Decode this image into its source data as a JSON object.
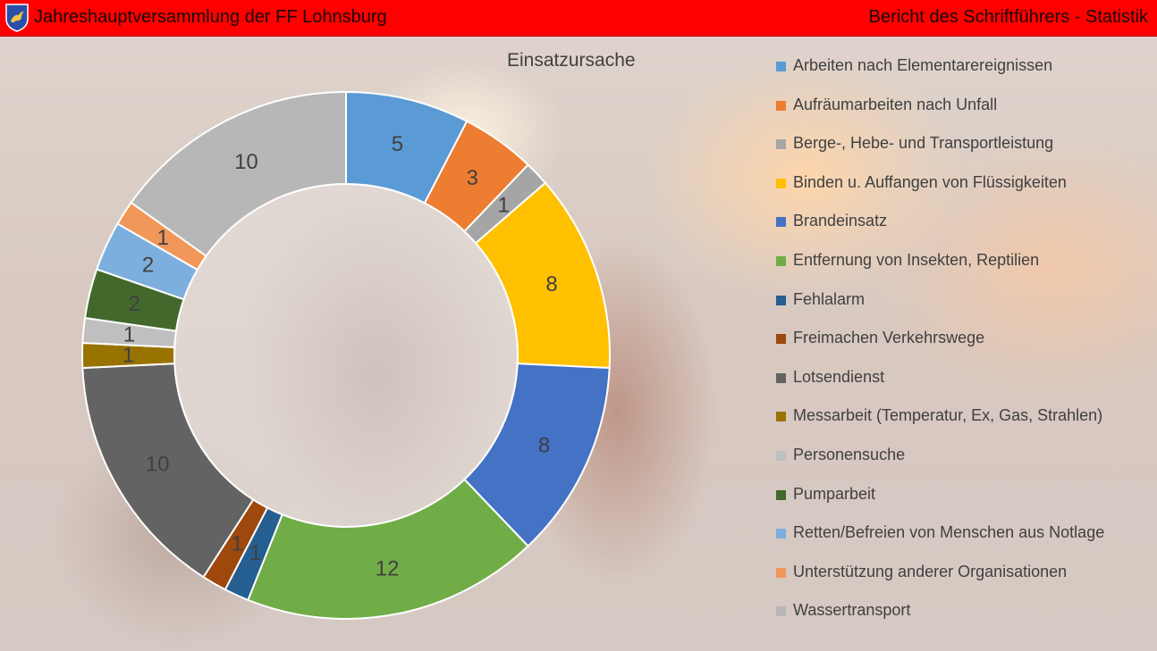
{
  "header": {
    "left_title": "Jahreshauptversammlung der FF Lohnsburg",
    "right_title": "Bericht des Schriftführers - Statistik",
    "bar_color": "#ff0000"
  },
  "chart_data": {
    "type": "pie",
    "style": "donut",
    "title": "Einsatzursache",
    "legend_position": "right",
    "start_angle": "top",
    "direction": "clockwise",
    "categories": [
      "Arbeiten nach Elementarereignissen",
      "Aufräumarbeiten nach Unfall",
      "Berge-, Hebe- und Transportleistung",
      "Binden u. Auffangen von Flüssigkeiten",
      "Brandeinsatz",
      "Entfernung von Insekten, Reptilien",
      "Fehlalarm",
      "Freimachen Verkehrswege",
      "Lotsendienst",
      "Messarbeit (Temperatur, Ex, Gas, Strahlen)",
      "Personensuche",
      "Pumparbeit",
      "Retten/Befreien von Menschen aus Notlage",
      "Unterstützung anderer Organisationen",
      "Wassertransport"
    ],
    "values": [
      5,
      3,
      1,
      8,
      8,
      12,
      1,
      1,
      10,
      1,
      1,
      2,
      2,
      1,
      10
    ],
    "colors": [
      "#5b9bd5",
      "#ed7d31",
      "#a5a5a5",
      "#ffc000",
      "#4472c4",
      "#70ad47",
      "#255e91",
      "#9e480e",
      "#636363",
      "#997300",
      "#bfbfbf",
      "#43682b",
      "#7cafdd",
      "#f1975a",
      "#b7b7b7"
    ],
    "label_colors": [
      "#404040",
      "#404040",
      "#404040",
      "#404040",
      "#404040",
      "#404040",
      "#404040",
      "#404040",
      "#404040",
      "#404040",
      "#404040",
      "#404040",
      "#404040",
      "#404040",
      "#404040"
    ]
  }
}
